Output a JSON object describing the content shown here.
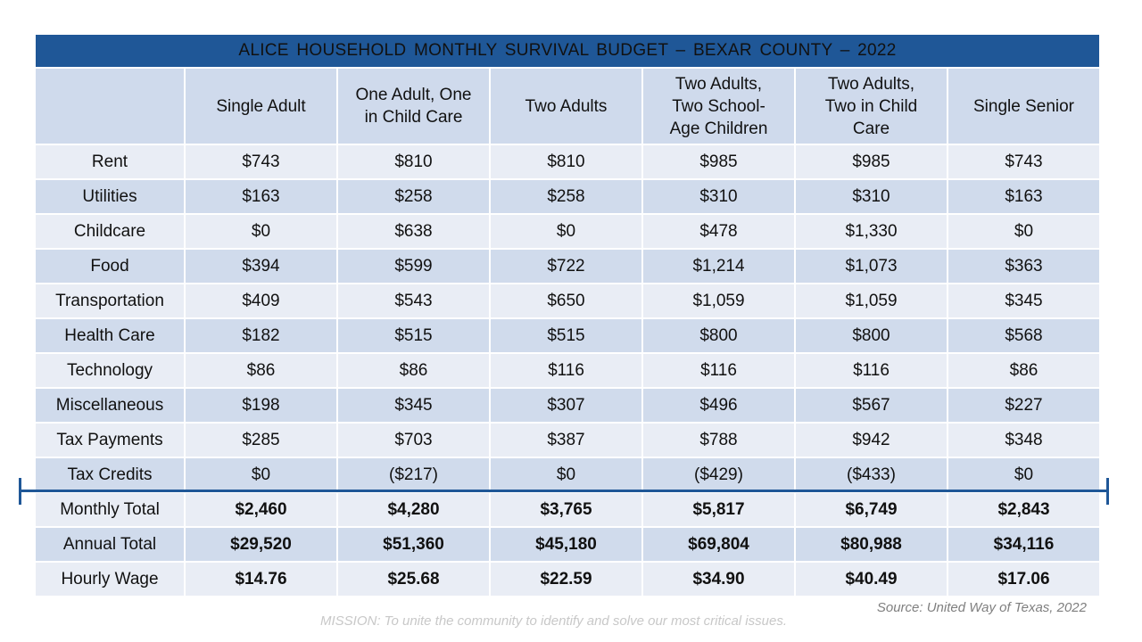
{
  "title": "ALICE HOUSEHOLD MONTHLY SURVIVAL BUDGET – BEXAR COUNTY – 2022",
  "columns": [
    {
      "line1": "Single Adult",
      "line2": "",
      "line3": ""
    },
    {
      "line1": "One Adult, One",
      "line2": "in Child Care",
      "line3": ""
    },
    {
      "line1": "Two Adults",
      "line2": "",
      "line3": ""
    },
    {
      "line1": "Two Adults,",
      "line2": "Two School-",
      "line3": "Age Children"
    },
    {
      "line1": "Two Adults,",
      "line2": "Two in Child",
      "line3": "Care"
    },
    {
      "line1": "Single Senior",
      "line2": "",
      "line3": ""
    }
  ],
  "rows": [
    {
      "label": "Rent",
      "values": [
        "$743",
        "$810",
        "$810",
        "$985",
        "$985",
        "$743"
      ]
    },
    {
      "label": "Utilities",
      "values": [
        "$163",
        "$258",
        "$258",
        "$310",
        "$310",
        "$163"
      ]
    },
    {
      "label": "Childcare",
      "values": [
        "$0",
        "$638",
        "$0",
        "$478",
        "$1,330",
        "$0"
      ]
    },
    {
      "label": "Food",
      "values": [
        "$394",
        "$599",
        "$722",
        "$1,214",
        "$1,073",
        "$363"
      ]
    },
    {
      "label": "Transportation",
      "values": [
        "$409",
        "$543",
        "$650",
        "$1,059",
        "$1,059",
        "$345"
      ]
    },
    {
      "label": "Health Care",
      "values": [
        "$182",
        "$515",
        "$515",
        "$800",
        "$800",
        "$568"
      ]
    },
    {
      "label": "Technology",
      "values": [
        "$86",
        "$86",
        "$116",
        "$116",
        "$116",
        "$86"
      ]
    },
    {
      "label": "Miscellaneous",
      "values": [
        "$198",
        "$345",
        "$307",
        "$496",
        "$567",
        "$227"
      ]
    },
    {
      "label": "Tax Payments",
      "values": [
        "$285",
        "$703",
        "$387",
        "$788",
        "$942",
        "$348"
      ]
    },
    {
      "label": "Tax Credits",
      "values": [
        "$0",
        "($217)",
        "$0",
        "($429)",
        "($433)",
        "$0"
      ]
    }
  ],
  "totals": [
    {
      "label": "Monthly Total",
      "values": [
        "$2,460",
        "$4,280",
        "$3,765",
        "$5,817",
        "$6,749",
        "$2,843"
      ]
    },
    {
      "label": "Annual Total",
      "values": [
        "$29,520",
        "$51,360",
        "$45,180",
        "$69,804",
        "$80,988",
        "$34,116"
      ]
    },
    {
      "label": "Hourly Wage",
      "values": [
        "$14.76",
        "$25.68",
        "$22.59",
        "$34.90",
        "$40.49",
        "$17.06"
      ]
    }
  ],
  "source": "Source: United Way of Texas, 2022",
  "mission": "MISSION: To unite the community to identify and solve our most critical issues.",
  "colors": {
    "header_blue": "#1f5797",
    "row_dark": "#d0dbec",
    "row_light": "#e9edf5"
  }
}
